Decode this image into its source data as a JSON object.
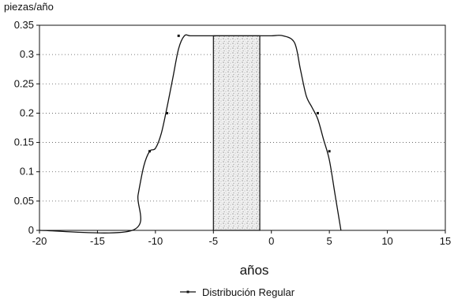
{
  "chart_data": {
    "type": "line",
    "ylabel": "piezas/año",
    "xlabel": "años",
    "xlim": [
      -20,
      15
    ],
    "ylim": [
      0,
      0.35
    ],
    "x_ticks": [
      -20,
      -15,
      -10,
      -5,
      0,
      5,
      10,
      15
    ],
    "x_tick_labels": [
      "-20",
      "-15",
      "-10",
      "-5",
      "0",
      "5",
      "10",
      "15"
    ],
    "y_ticks": [
      0,
      0.05,
      0.1,
      0.15,
      0.2,
      0.25,
      0.3,
      0.35
    ],
    "y_tick_labels": [
      "0",
      "0.05",
      "0.1",
      "0.15",
      "0.2",
      "0.25",
      "0.3",
      "0.35"
    ],
    "grid": "horizontal dotted",
    "legend_position": "bottom-center",
    "series": [
      {
        "name": "Distribución Regular",
        "color": "#111111",
        "x": [
          -20,
          -12,
          -11.5,
          -11,
          -10.5,
          -10,
          -9.5,
          -9,
          -8.5,
          -8,
          -7.5,
          -7,
          -6,
          -5,
          -4,
          -3,
          -2,
          -1,
          0,
          1,
          2,
          2.5,
          3,
          3.5,
          4,
          4.5,
          5,
          5.5,
          6
        ],
        "y": [
          0,
          0,
          0.06,
          0.11,
          0.135,
          0.14,
          0.165,
          0.21,
          0.26,
          0.31,
          0.332,
          0.332,
          0.332,
          0.332,
          0.332,
          0.332,
          0.332,
          0.332,
          0.332,
          0.332,
          0.32,
          0.275,
          0.23,
          0.21,
          0.19,
          0.155,
          0.12,
          0.06,
          0
        ],
        "markers_x": [
          -8,
          -9,
          -10.5,
          4,
          5
        ],
        "markers_y": [
          0.332,
          0.2,
          0.135,
          0.2,
          0.135
        ]
      }
    ],
    "shaded_region": {
      "x_start": -5,
      "x_end": -1,
      "pattern": "stipple"
    }
  }
}
